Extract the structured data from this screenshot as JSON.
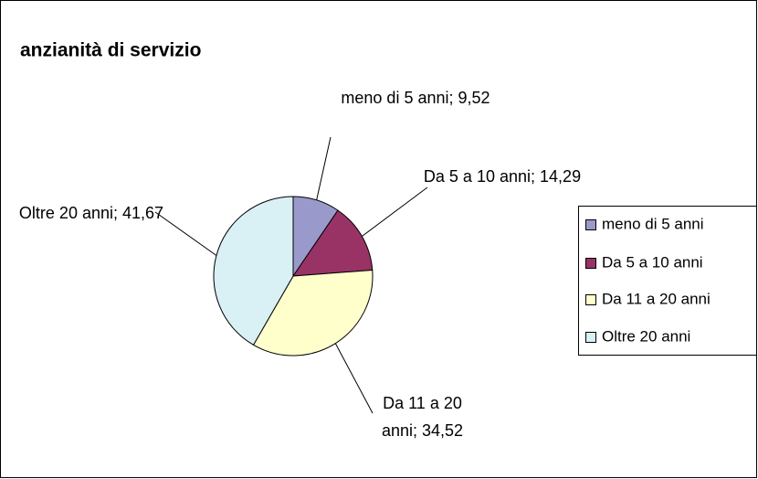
{
  "chart_data": {
    "type": "pie",
    "title": "anzianità di servizio",
    "categories": [
      "meno di 5 anni",
      "Da 5 a 10 anni",
      "Da 11 a 20 anni",
      "Oltre 20 anni"
    ],
    "values": [
      9.52,
      14.29,
      34.52,
      41.67
    ],
    "value_labels": [
      "9,52",
      "14,29",
      "34,52",
      "41,67"
    ],
    "label_separator": ";",
    "colors": [
      "#9999cc",
      "#993366",
      "#ffffcc",
      "#d9f0f5"
    ],
    "legend": "right"
  }
}
